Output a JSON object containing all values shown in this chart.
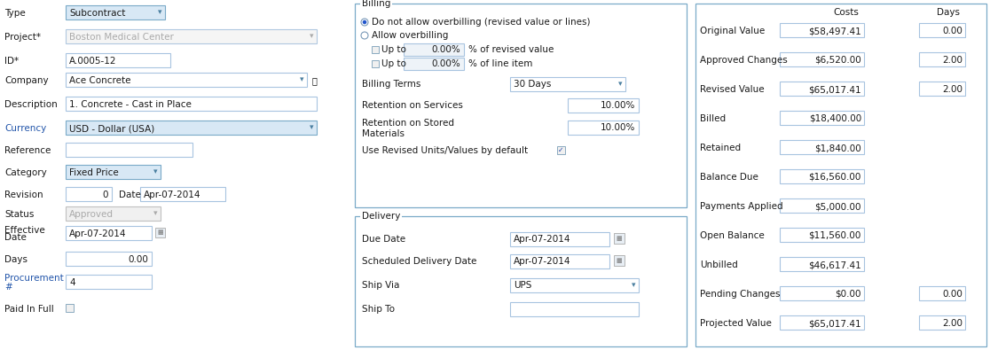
{
  "bg_color": "#ffffff",
  "text_color": "#1a1a1a",
  "link_color": "#2255aa",
  "field_border": "#a8c4e0",
  "dropdown_bg": "#ddeeff",
  "dropdown_border": "#7aaac8",
  "group_border": "#7aaac8",
  "costs_panel": {
    "col_costs": "Costs",
    "col_days": "Days",
    "rows": [
      {
        "label": "Original Value",
        "cost": "$58,497.41",
        "days": "0.00",
        "has_days": true
      },
      {
        "label": "Approved Changes",
        "cost": "$6,520.00",
        "days": "2.00",
        "has_days": true
      },
      {
        "label": "Revised Value",
        "cost": "$65,017.41",
        "days": "2.00",
        "has_days": true
      },
      {
        "label": "Billed",
        "cost": "$18,400.00",
        "days": null,
        "has_days": false
      },
      {
        "label": "Retained",
        "cost": "$1,840.00",
        "days": null,
        "has_days": false
      },
      {
        "label": "Balance Due",
        "cost": "$16,560.00",
        "days": null,
        "has_days": false
      },
      {
        "label": "Payments Applied",
        "cost": "$5,000.00",
        "days": null,
        "has_days": false
      },
      {
        "label": "Open Balance",
        "cost": "$11,560.00",
        "days": null,
        "has_days": false
      },
      {
        "label": "Unbilled",
        "cost": "$46,617.41",
        "days": null,
        "has_days": false
      },
      {
        "label": "Pending Changes",
        "cost": "$0.00",
        "days": "0.00",
        "has_days": true
      },
      {
        "label": "Projected Value",
        "cost": "$65,017.41",
        "days": "2.00",
        "has_days": true
      }
    ]
  }
}
